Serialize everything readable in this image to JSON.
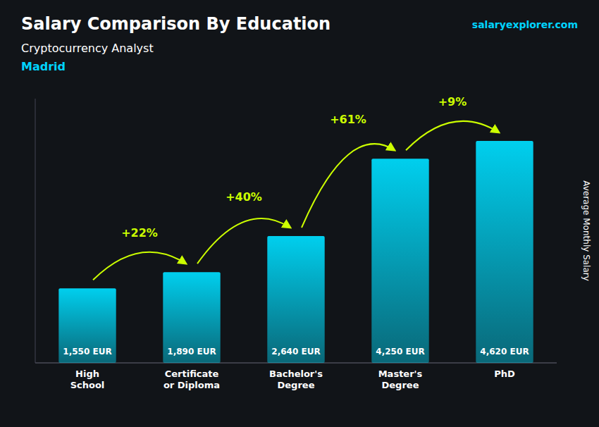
{
  "chart_data": {
    "type": "bar",
    "title": "Salary Comparison By Education",
    "subtitle": "Cryptocurrency Analyst",
    "location": "Madrid",
    "website": "salaryexplorer.com",
    "ylabel": "Average Monthly Salary",
    "categories": [
      "High\nSchool",
      "Certificate\nor Diploma",
      "Bachelor's\nDegree",
      "Master's\nDegree",
      "PhD"
    ],
    "values": [
      1550,
      1890,
      2640,
      4250,
      4620
    ],
    "value_labels": [
      "1,550 EUR",
      "1,890 EUR",
      "2,640 EUR",
      "4,250 EUR",
      "4,620 EUR"
    ],
    "data_labels": true,
    "color": "#00cfee",
    "annotations": [
      {
        "text": "+22%",
        "color": "#ccff00"
      },
      {
        "text": "+40%",
        "color": "#ccff00"
      },
      {
        "text": "+61%",
        "color": "#ccff00"
      },
      {
        "text": "+9%",
        "color": "#ccff00"
      }
    ],
    "ylim": [
      0,
      5500
    ],
    "tick_labels": "x",
    "grid": false
  }
}
